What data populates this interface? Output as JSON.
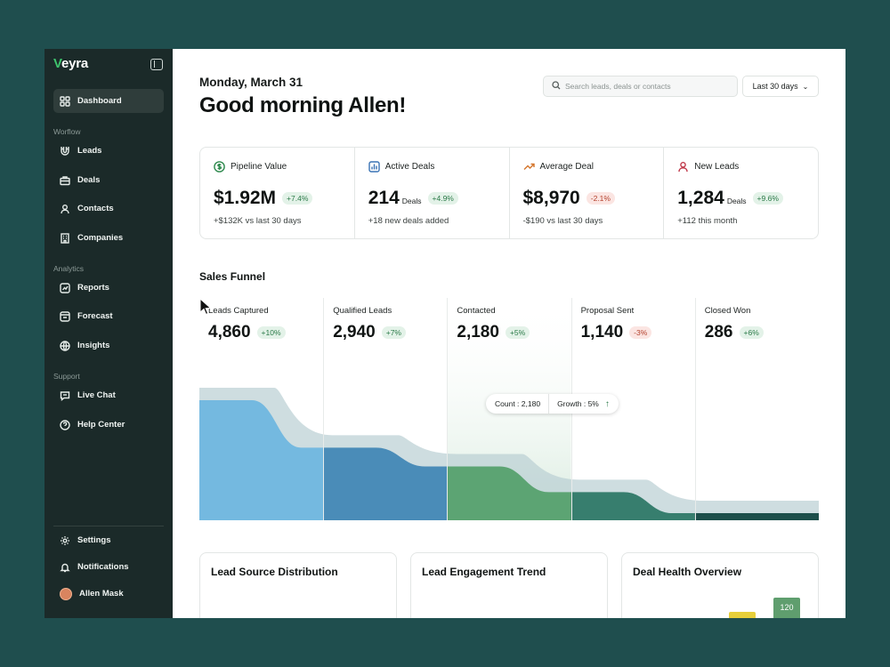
{
  "brand": {
    "name_first": "V",
    "name_rest": "eyra"
  },
  "sidebar": {
    "top": [
      {
        "label": "Dashboard",
        "icon": "grid-icon"
      }
    ],
    "workflow_label": "Worflow",
    "workflow": [
      {
        "label": "Leads",
        "icon": "magnet-icon"
      },
      {
        "label": "Deals",
        "icon": "briefcase-icon"
      },
      {
        "label": "Contacts",
        "icon": "user-icon"
      },
      {
        "label": "Companies",
        "icon": "building-icon"
      }
    ],
    "analytics_label": "Analytics",
    "analytics": [
      {
        "label": "Reports",
        "icon": "report-icon"
      },
      {
        "label": "Forecast",
        "icon": "forecast-icon"
      },
      {
        "label": "Insights",
        "icon": "globe-icon"
      }
    ],
    "support_label": "Support",
    "support": [
      {
        "label": "Live Chat",
        "icon": "chat-icon"
      },
      {
        "label": "Help Center",
        "icon": "help-icon"
      }
    ],
    "bottom": [
      {
        "label": "Settings",
        "icon": "gear-icon"
      },
      {
        "label": "Notifications",
        "icon": "bell-icon"
      }
    ],
    "user": {
      "name": "Allen Mask"
    }
  },
  "header": {
    "date": "Monday, March 31",
    "greeting": "Good morning Allen!",
    "search_placeholder": "Search leads, deals or contacts",
    "range": "Last 30 days"
  },
  "kpis": [
    {
      "label": "Pipeline Value",
      "value": "$1.92M",
      "unit": "",
      "change": "+7.4%",
      "trend": "pos",
      "sub": "+$132K vs last 30 days"
    },
    {
      "label": "Active Deals",
      "value": "214",
      "unit": "Deals",
      "change": "+4.9%",
      "trend": "pos",
      "sub": "+18 new deals added"
    },
    {
      "label": "Average Deal",
      "value": "$8,970",
      "unit": "",
      "change": "-2.1%",
      "trend": "neg",
      "sub": "-$190 vs last 30 days"
    },
    {
      "label": "New Leads",
      "value": "1,284",
      "unit": "Deals",
      "change": "+9.6%",
      "trend": "pos",
      "sub": "+112 this month"
    }
  ],
  "funnel": {
    "title": "Sales Funnel",
    "tooltip": {
      "count_label": "Count :",
      "count": "2,180",
      "growth_label": "Growth :",
      "growth": "5%"
    }
  },
  "chart_data": {
    "type": "area",
    "categories": [
      "Leads Captured",
      "Qualified Leads",
      "Contacted",
      "Proposal Sent",
      "Closed Won"
    ],
    "values": [
      4860,
      2940,
      2180,
      1140,
      286
    ],
    "changes": [
      "+10%",
      "+7%",
      "+5%",
      "-3%",
      "+6%"
    ],
    "labels": [
      "4,860",
      "2,940",
      "2,180",
      "1,140",
      "286"
    ],
    "colors": [
      "#74b9e0",
      "#4a8cb8",
      "#5ca473",
      "#377e6e",
      "#1d4f4b"
    ],
    "highlighted": "Contacted"
  },
  "cards": [
    {
      "title": "Lead Source Distribution"
    },
    {
      "title": "Lead Engagement Trend"
    },
    {
      "title": "Deal Health Overview",
      "bar_label": "120"
    }
  ]
}
